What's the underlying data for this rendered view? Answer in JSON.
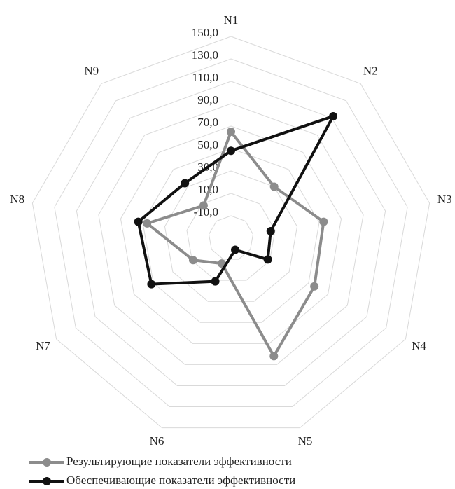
{
  "chart_data": {
    "type": "radar",
    "categories": [
      "N1",
      "N2",
      "N3",
      "N4",
      "N5",
      "N6",
      "N7",
      "N8",
      "N9"
    ],
    "series": [
      {
        "name": "Результирующие показатели эффективности",
        "color": "#8c8c8c",
        "values": [
          65,
          30,
          54,
          56,
          82,
          -6,
          9,
          46,
          8
        ]
      },
      {
        "name": "Обеспечивающие показатели эффективности",
        "color": "#111111",
        "values": [
          48,
          112,
          6,
          8,
          -19,
          11,
          52,
          54,
          34
        ]
      }
    ],
    "ylim": [
      -30,
      150
    ],
    "yticks": [
      {
        "value": -10,
        "label": "-10,0"
      },
      {
        "value": 10,
        "label": "10,0"
      },
      {
        "value": 30,
        "label": "30,0"
      },
      {
        "value": 50,
        "label": "50,0"
      },
      {
        "value": 70,
        "label": "70,0"
      },
      {
        "value": 90,
        "label": "90,0"
      },
      {
        "value": 110,
        "label": "110,0"
      },
      {
        "value": 130,
        "label": "130,0"
      },
      {
        "value": 150,
        "label": "150,0"
      }
    ],
    "grid": true,
    "legend": "bottom"
  }
}
